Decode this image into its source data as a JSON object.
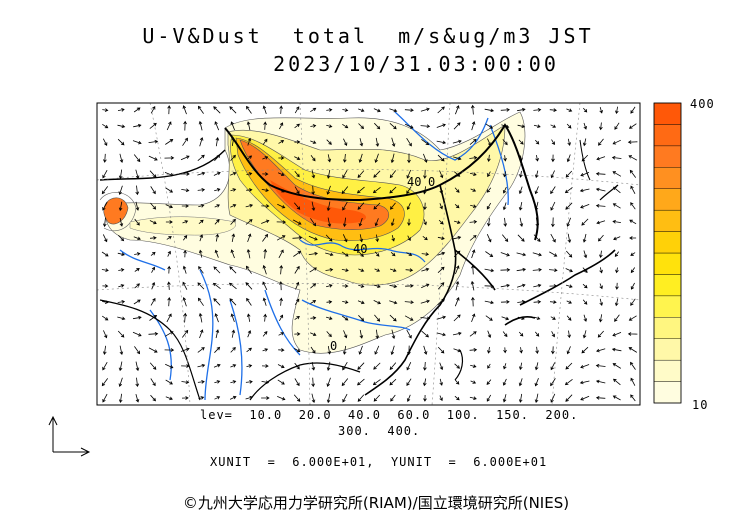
{
  "title": {
    "line1": "U-V&Dust  total  m/s&ug/m3 JST",
    "line2": "2023/10/31.03:00:00"
  },
  "colorbar": {
    "max_label": "400",
    "min_label": "10",
    "colors": [
      "#fffde0",
      "#fffbc8",
      "#fff8a8",
      "#fff680",
      "#fff44e",
      "#ffee22",
      "#ffe20c",
      "#ffd108",
      "#ffbe12",
      "#ffa81a",
      "#ff9020",
      "#ff7a20",
      "#ff6a14",
      "#ff5808"
    ]
  },
  "contour_labels": [
    "40",
    "40",
    "0",
    "0"
  ],
  "levels": {
    "line1": "lev=  10.0  20.0  40.0  60.0  100.  150.  200.",
    "line2": "300.  400."
  },
  "units": "XUNIT  =  6.000E+01,  YUNIT  =  6.000E+01",
  "copyright": "©九州大学応用力学研究所(RIAM)/国立環境研究所(NIES)"
}
